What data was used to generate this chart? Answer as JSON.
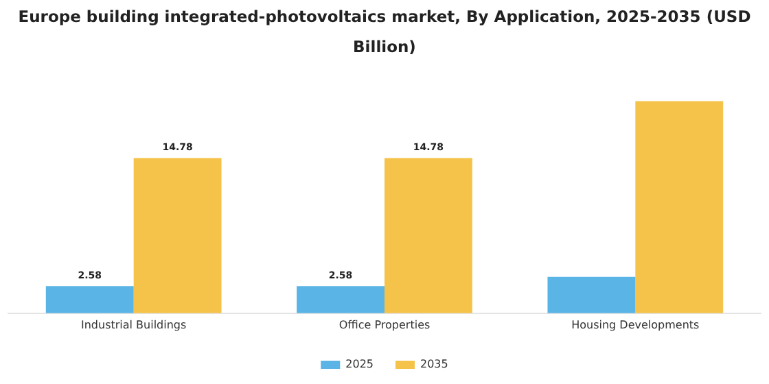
{
  "chart_data": {
    "type": "bar",
    "title": "Europe building integrated-photovoltaics market, By Application, 2025-2035 (USD Billion)",
    "categories": [
      "Industrial Buildings",
      "Office Properties",
      "Housing Developments"
    ],
    "series": [
      {
        "name": "2025",
        "color": "#5ab4e5",
        "values": [
          2.58,
          2.58,
          3.47
        ],
        "value_labels": [
          "2.58",
          "2.58",
          null
        ]
      },
      {
        "name": "2035",
        "color": "#f6c34a",
        "values": [
          14.78,
          14.78,
          20.2
        ],
        "value_labels": [
          "14.78",
          "14.78",
          null
        ]
      }
    ],
    "grid": false,
    "legend": "bottom",
    "tick_labels": "x"
  }
}
